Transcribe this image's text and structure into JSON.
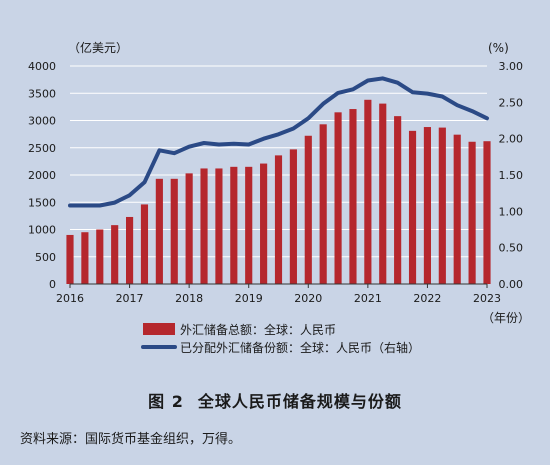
{
  "colors": {
    "bar": "#b5272d",
    "line": "#2b4a86",
    "background": "#c9d4e6"
  },
  "chart_data": {
    "type": "bar+line",
    "left_unit": "（亿美元）",
    "right_unit": "(%)",
    "x_unit": "（年份）",
    "x_ticks": [
      "2016",
      "2017",
      "2018",
      "2019",
      "2020",
      "2021",
      "2022",
      "2023"
    ],
    "y_left_ticks": [
      "4000",
      "3500",
      "3000",
      "2500",
      "2000",
      "1500",
      "1000",
      "500",
      "0"
    ],
    "y_right_ticks": [
      "3.00",
      "2.50",
      "2.00",
      "1.50",
      "1.00",
      "0.50",
      "0.00"
    ],
    "ylim_left": [
      0,
      4000
    ],
    "ylim_right": [
      0,
      3
    ],
    "x_range": [
      2016,
      2023
    ],
    "grid": "horizontal",
    "legend_position": "bottom",
    "series": [
      {
        "name": "外汇储备总额：全球：人民币",
        "axis": "left",
        "type": "bar",
        "x": [
          2016.0,
          2016.25,
          2016.5,
          2016.75,
          2017.0,
          2017.25,
          2017.5,
          2017.75,
          2018.0,
          2018.25,
          2018.5,
          2018.75,
          2019.0,
          2019.25,
          2019.5,
          2019.75,
          2020.0,
          2020.25,
          2020.5,
          2020.75,
          2021.0,
          2021.25,
          2021.5,
          2021.75,
          2022.0,
          2022.25,
          2022.5,
          2022.75,
          2023.0
        ],
        "values": [
          900,
          950,
          1000,
          1080,
          1230,
          1460,
          1930,
          1930,
          2030,
          2120,
          2120,
          2150,
          2150,
          2210,
          2360,
          2470,
          2720,
          2930,
          3150,
          3210,
          3380,
          3310,
          3080,
          2810,
          2880,
          2870,
          2740,
          2610,
          2620
        ]
      },
      {
        "name": "已分配外汇储备份额：全球：人民币（右轴）",
        "axis": "right",
        "type": "line",
        "x": [
          2016.0,
          2016.25,
          2016.5,
          2016.75,
          2017.0,
          2017.25,
          2017.5,
          2017.75,
          2018.0,
          2018.25,
          2018.5,
          2018.75,
          2019.0,
          2019.25,
          2019.5,
          2019.75,
          2020.0,
          2020.25,
          2020.5,
          2020.75,
          2021.0,
          2021.25,
          2021.5,
          2021.75,
          2022.0,
          2022.25,
          2022.5,
          2022.75,
          2023.0
        ],
        "values": [
          1.08,
          1.08,
          1.08,
          1.12,
          1.22,
          1.4,
          1.84,
          1.8,
          1.89,
          1.94,
          1.92,
          1.93,
          1.92,
          2.0,
          2.06,
          2.14,
          2.28,
          2.48,
          2.63,
          2.68,
          2.8,
          2.83,
          2.77,
          2.64,
          2.62,
          2.58,
          2.46,
          2.38,
          2.28
        ]
      }
    ]
  },
  "caption": {
    "number": "图 2",
    "title": "全球人民币储备规模与份额"
  },
  "source": "资料来源：国际货币基金组织，万得。"
}
